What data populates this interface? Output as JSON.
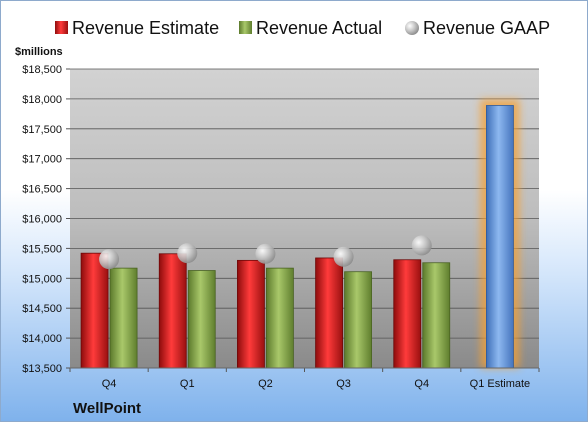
{
  "chart_data": {
    "type": "bar",
    "unit_label": "$millions",
    "company": "WellPoint",
    "categories": [
      "Q4",
      "Q1",
      "Q2",
      "Q3",
      "Q4",
      "Q1 Estimate"
    ],
    "series": [
      {
        "name": "Revenue Estimate",
        "kind": "bar",
        "color": "#e02020",
        "values": [
          15420,
          15410,
          15300,
          15340,
          15310,
          null
        ]
      },
      {
        "name": "Revenue Actual",
        "kind": "bar",
        "color": "#8fb050",
        "values": [
          15170,
          15130,
          15170,
          15110,
          15260,
          null
        ]
      },
      {
        "name": "Revenue GAAP",
        "kind": "marker",
        "color": "#b8b8b8",
        "values": [
          15320,
          15420,
          15410,
          15360,
          15550,
          null
        ]
      }
    ],
    "forecast": {
      "category": "Q1 Estimate",
      "value": 17890,
      "color": "#6a9ee0",
      "glow": "#f7a030"
    },
    "ylim": [
      13500,
      18500
    ],
    "ytick_step": 500,
    "ytick_labels": [
      "$13,500",
      "$14,000",
      "$14,500",
      "$15,000",
      "$15,500",
      "$16,000",
      "$16,500",
      "$17,000",
      "$17,500",
      "$18,000",
      "$18,500"
    ],
    "grid": true,
    "legend": "top"
  }
}
